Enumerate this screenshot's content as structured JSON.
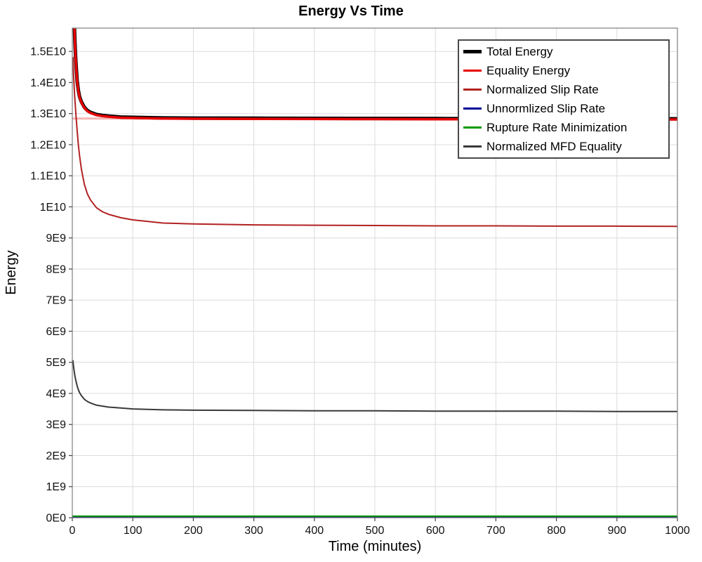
{
  "chart_data": {
    "type": "line",
    "title": "Energy Vs Time",
    "xlabel": "Time (minutes)",
    "ylabel": "Energy",
    "xlim": [
      0,
      1000
    ],
    "ylim_e9": [
      0,
      15.75
    ],
    "grid": true,
    "legend_position": "top-right",
    "x_ticks": [
      {
        "value": 0,
        "label": "0"
      },
      {
        "value": 100,
        "label": "100"
      },
      {
        "value": 200,
        "label": "200"
      },
      {
        "value": 300,
        "label": "300"
      },
      {
        "value": 400,
        "label": "400"
      },
      {
        "value": 500,
        "label": "500"
      },
      {
        "value": 600,
        "label": "600"
      },
      {
        "value": 700,
        "label": "700"
      },
      {
        "value": 800,
        "label": "800"
      },
      {
        "value": 900,
        "label": "900"
      },
      {
        "value": 1000,
        "label": "1000"
      }
    ],
    "y_ticks": [
      {
        "value_e9": 0,
        "label": "0E0"
      },
      {
        "value_e9": 1,
        "label": "1E9"
      },
      {
        "value_e9": 2,
        "label": "2E9"
      },
      {
        "value_e9": 3,
        "label": "3E9"
      },
      {
        "value_e9": 4,
        "label": "4E9"
      },
      {
        "value_e9": 5,
        "label": "5E9"
      },
      {
        "value_e9": 6,
        "label": "6E9"
      },
      {
        "value_e9": 7,
        "label": "7E9"
      },
      {
        "value_e9": 8,
        "label": "8E9"
      },
      {
        "value_e9": 9,
        "label": "9E9"
      },
      {
        "value_e9": 10,
        "label": "1E10"
      },
      {
        "value_e9": 11,
        "label": "1.1E10"
      },
      {
        "value_e9": 12,
        "label": "1.2E10"
      },
      {
        "value_e9": 13,
        "label": "1.3E10"
      },
      {
        "value_e9": 14,
        "label": "1.4E10"
      },
      {
        "value_e9": 15,
        "label": "1.5E10"
      }
    ],
    "x": [
      1,
      2,
      3,
      4,
      5,
      6,
      8,
      10,
      12,
      15,
      20,
      25,
      30,
      40,
      50,
      60,
      80,
      100,
      150,
      200,
      300,
      400,
      500,
      600,
      700,
      800,
      900,
      1000
    ],
    "series": [
      {
        "name": "Total Energy",
        "color": "#000000",
        "width": 5,
        "values_e9": [
          17.5,
          16.8,
          16.1,
          15.5,
          15.0,
          14.62,
          14.05,
          13.75,
          13.55,
          13.38,
          13.2,
          13.1,
          13.04,
          12.97,
          12.94,
          12.92,
          12.89,
          12.88,
          12.86,
          12.855,
          12.85,
          12.846,
          12.843,
          12.84,
          12.838,
          12.836,
          12.834,
          12.832
        ]
      },
      {
        "name": "Equality Energy",
        "color": "#e60000",
        "width": 3.5,
        "values_e9": [
          17.48,
          16.78,
          16.08,
          15.48,
          14.98,
          14.6,
          14.03,
          13.73,
          13.53,
          13.36,
          13.18,
          13.08,
          13.02,
          12.95,
          12.92,
          12.9,
          12.87,
          12.86,
          12.84,
          12.835,
          12.83,
          12.826,
          12.823,
          12.82,
          12.818,
          12.816,
          12.814,
          12.812
        ]
      },
      {
        "name": "Normalized Slip Rate",
        "color": "#b22222",
        "width": 2,
        "values_e9": [
          14.8,
          14.3,
          13.9,
          13.55,
          13.25,
          12.95,
          12.45,
          12.0,
          11.65,
          11.22,
          10.72,
          10.42,
          10.22,
          9.97,
          9.84,
          9.76,
          9.65,
          9.58,
          9.48,
          9.45,
          9.42,
          9.41,
          9.4,
          9.39,
          9.39,
          9.38,
          9.38,
          9.37
        ]
      },
      {
        "name": "Unnormlized Slip Rate",
        "color": "#000099",
        "width": 2,
        "constant_e9": 0.03
      },
      {
        "name": "Rupture Rate Minimization",
        "color": "#009900",
        "width": 2,
        "constant_e9": 0.05
      },
      {
        "name": "Normalized MFD Equality",
        "color": "#3a3a3a",
        "width": 2,
        "values_e9": [
          5.05,
          4.88,
          4.73,
          4.6,
          4.49,
          4.4,
          4.24,
          4.12,
          4.03,
          3.93,
          3.81,
          3.74,
          3.69,
          3.62,
          3.59,
          3.56,
          3.53,
          3.5,
          3.47,
          3.46,
          3.45,
          3.44,
          3.44,
          3.43,
          3.43,
          3.43,
          3.42,
          3.42
        ]
      }
    ],
    "reference_line": {
      "value_e9": 12.84,
      "color": "#f5b4b4",
      "width": 3
    },
    "draw_order": [
      3,
      4,
      5,
      2,
      0,
      1
    ]
  }
}
